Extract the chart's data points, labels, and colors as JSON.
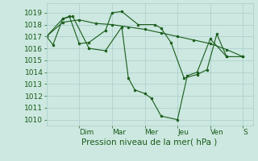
{
  "bg_color": "#cce8e0",
  "grid_color": "#aacccc",
  "line_color": "#1a5c1a",
  "marker_color": "#1a5c1a",
  "xlabel": "Pression niveau de la mer( hPa )",
  "xlabel_fontsize": 7.5,
  "tick_label_fontsize": 6.5,
  "ylim": [
    1009.5,
    1019.8
  ],
  "yticks": [
    1010,
    1011,
    1012,
    1013,
    1014,
    1015,
    1016,
    1017,
    1018,
    1019
  ],
  "day_positions": [
    1.0,
    2.0,
    3.0,
    4.0,
    5.0,
    6.0
  ],
  "day_labels": [
    "Dim",
    "Mar",
    "Mer",
    "Jeu",
    "Ven",
    "S"
  ],
  "xlim": [
    0.0,
    6.3
  ],
  "lines": [
    {
      "x": [
        0.0,
        0.2,
        0.5,
        0.7,
        1.0,
        1.3,
        1.8,
        2.0,
        2.3,
        2.8,
        3.3,
        3.5,
        3.8,
        4.2,
        4.6,
        4.9,
        5.2,
        5.5
      ],
      "y": [
        1017.0,
        1016.3,
        1018.5,
        1018.7,
        1016.4,
        1016.5,
        1017.5,
        1019.0,
        1019.1,
        1018.0,
        1018.0,
        1017.7,
        1016.5,
        1013.5,
        1013.8,
        1014.2,
        1017.2,
        1015.3
      ]
    },
    {
      "x": [
        0.0,
        0.5,
        1.0,
        1.5,
        2.0,
        2.5,
        3.0,
        3.5,
        4.0,
        4.5,
        5.0,
        5.5,
        6.0
      ],
      "y": [
        1017.0,
        1018.2,
        1018.4,
        1018.1,
        1018.0,
        1017.8,
        1017.6,
        1017.3,
        1017.0,
        1016.7,
        1016.4,
        1015.9,
        1015.3
      ]
    },
    {
      "x": [
        0.0,
        0.5,
        0.8,
        1.3,
        1.8,
        2.3,
        2.5,
        2.7,
        3.0,
        3.2,
        3.5,
        4.0,
        4.3,
        4.6,
        5.0,
        5.5,
        6.0
      ],
      "y": [
        1017.0,
        1018.5,
        1018.7,
        1016.0,
        1015.8,
        1017.8,
        1013.5,
        1012.5,
        1012.2,
        1011.8,
        1010.3,
        1010.0,
        1013.7,
        1014.0,
        1016.8,
        1015.3,
        1015.3
      ]
    }
  ]
}
